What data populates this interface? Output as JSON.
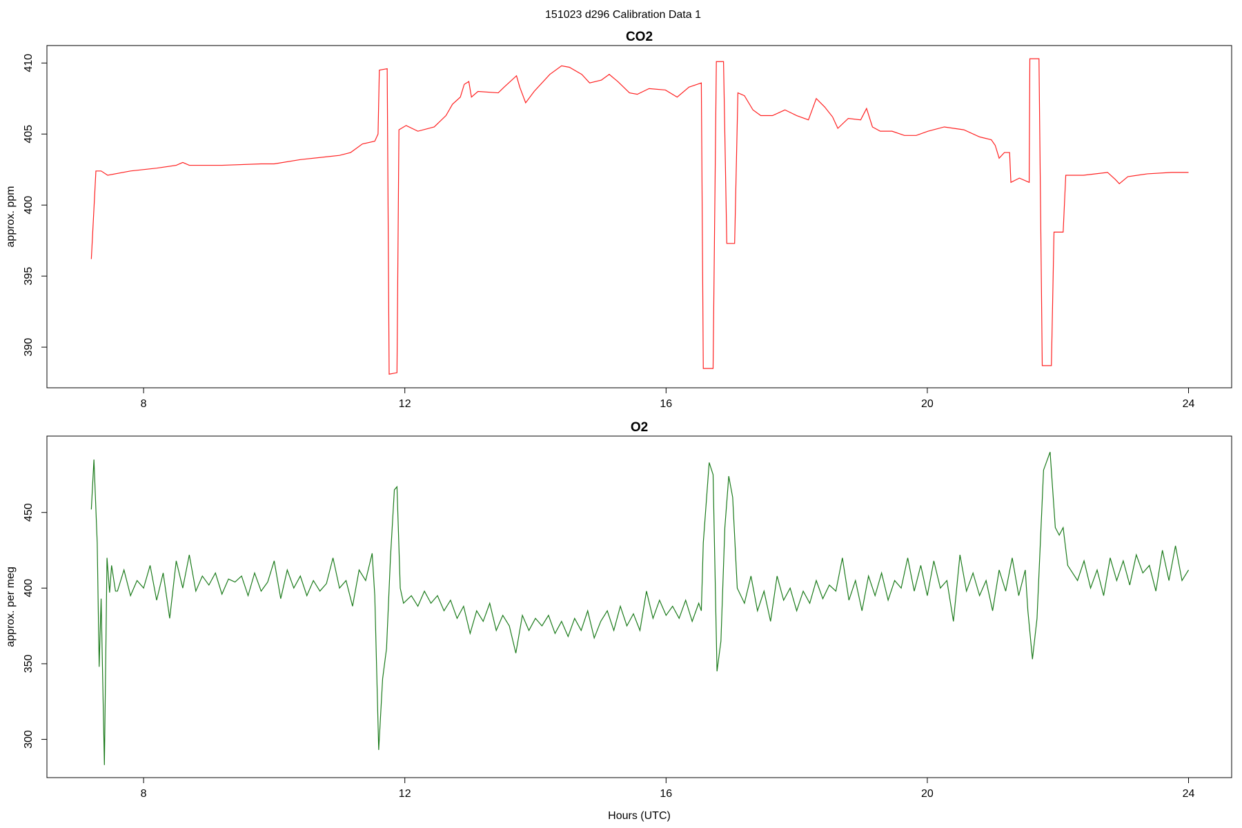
{
  "title": "151023   d296   Calibration Data 1",
  "chart_data": [
    {
      "type": "line",
      "title": "CO2",
      "ylabel": "approx. ppm",
      "color": "#ff2020",
      "xlim": [
        6.52,
        24.66
      ],
      "xticks": [
        8,
        12,
        16,
        20,
        24
      ],
      "ylim": [
        387.14,
        411.23
      ],
      "yticks": [
        390,
        395,
        400,
        405,
        410
      ],
      "x": [
        7.2,
        7.27,
        7.35,
        7.45,
        7.8,
        8.2,
        8.5,
        8.6,
        8.7,
        9.2,
        9.8,
        10.0,
        10.4,
        10.8,
        11.0,
        11.17,
        11.35,
        11.54,
        11.59,
        11.61,
        11.73,
        11.76,
        11.88,
        11.91,
        12.02,
        12.2,
        12.45,
        12.63,
        12.73,
        12.85,
        12.91,
        12.98,
        13.02,
        13.12,
        13.43,
        13.52,
        13.71,
        13.76,
        13.85,
        13.98,
        14.22,
        14.4,
        14.52,
        14.71,
        14.83,
        15.01,
        15.13,
        15.26,
        15.44,
        15.56,
        15.74,
        15.99,
        16.17,
        16.35,
        16.54,
        16.57,
        16.72,
        16.77,
        16.88,
        16.93,
        17.05,
        17.1,
        17.2,
        17.33,
        17.45,
        17.63,
        17.82,
        18.0,
        18.18,
        18.3,
        18.43,
        18.55,
        18.63,
        18.79,
        18.98,
        19.07,
        19.16,
        19.28,
        19.46,
        19.65,
        19.83,
        20.01,
        20.26,
        20.56,
        20.8,
        20.98,
        21.04,
        21.1,
        21.18,
        21.26,
        21.28,
        21.41,
        21.56,
        21.57,
        21.71,
        21.76,
        21.9,
        21.94,
        22.08,
        22.12,
        22.39,
        22.76,
        22.88,
        22.94,
        23.07,
        23.37,
        23.74,
        24.0
      ],
      "values": [
        396.2,
        402.4,
        402.4,
        402.1,
        402.4,
        402.6,
        402.8,
        403.0,
        402.8,
        402.8,
        402.9,
        402.9,
        403.2,
        403.4,
        403.5,
        403.7,
        404.3,
        404.5,
        405.0,
        409.5,
        409.6,
        388.1,
        388.2,
        405.3,
        405.6,
        405.2,
        405.5,
        406.3,
        407.1,
        407.6,
        408.5,
        408.7,
        407.6,
        408.0,
        407.9,
        408.3,
        409.1,
        408.3,
        407.2,
        408.0,
        409.2,
        409.8,
        409.7,
        409.2,
        408.6,
        408.8,
        409.2,
        408.7,
        407.9,
        407.8,
        408.2,
        408.1,
        407.6,
        408.3,
        408.6,
        388.5,
        388.5,
        410.1,
        410.1,
        397.3,
        397.3,
        407.9,
        407.7,
        406.7,
        406.3,
        406.3,
        406.7,
        406.3,
        406.0,
        407.5,
        406.9,
        406.2,
        405.4,
        406.1,
        406.0,
        406.8,
        405.5,
        405.2,
        405.2,
        404.9,
        404.9,
        405.2,
        405.5,
        405.3,
        404.8,
        404.6,
        404.2,
        403.3,
        403.7,
        403.7,
        401.6,
        401.9,
        401.6,
        410.3,
        410.3,
        388.7,
        388.7,
        398.1,
        398.1,
        402.1,
        402.1,
        402.3,
        401.8,
        401.5,
        402.0,
        402.2,
        402.3,
        402.3
      ]
    },
    {
      "type": "line",
      "title": "O2",
      "ylabel": "approx. per meg",
      "xlabel": "Hours (UTC)",
      "color": "#1a7a1a",
      "xlim": [
        6.52,
        24.66
      ],
      "xticks": [
        8,
        12,
        16,
        20,
        24
      ],
      "ylim": [
        274.7,
        500.5
      ],
      "yticks": [
        300,
        350,
        400,
        450
      ],
      "x": [
        7.2,
        7.24,
        7.29,
        7.32,
        7.35,
        7.4,
        7.44,
        7.48,
        7.51,
        7.57,
        7.6,
        7.7,
        7.8,
        7.9,
        8.0,
        8.1,
        8.2,
        8.3,
        8.4,
        8.5,
        8.6,
        8.7,
        8.8,
        8.9,
        9.0,
        9.1,
        9.2,
        9.3,
        9.4,
        9.5,
        9.6,
        9.7,
        9.8,
        9.9,
        10.0,
        10.1,
        10.2,
        10.3,
        10.4,
        10.5,
        10.6,
        10.7,
        10.8,
        10.9,
        11.0,
        11.1,
        11.2,
        11.3,
        11.4,
        11.5,
        11.54,
        11.6,
        11.66,
        11.72,
        11.78,
        11.84,
        11.88,
        11.93,
        11.98,
        12.1,
        12.2,
        12.3,
        12.4,
        12.5,
        12.6,
        12.7,
        12.8,
        12.9,
        13.0,
        13.1,
        13.2,
        13.3,
        13.4,
        13.5,
        13.6,
        13.7,
        13.8,
        13.9,
        14.0,
        14.1,
        14.2,
        14.3,
        14.4,
        14.5,
        14.6,
        14.7,
        14.8,
        14.9,
        15.0,
        15.1,
        15.2,
        15.3,
        15.4,
        15.5,
        15.6,
        15.7,
        15.8,
        15.9,
        16.0,
        16.1,
        16.2,
        16.3,
        16.4,
        16.5,
        16.54,
        16.57,
        16.66,
        16.72,
        16.78,
        16.84,
        16.9,
        16.96,
        17.02,
        17.09,
        17.2,
        17.3,
        17.4,
        17.5,
        17.6,
        17.7,
        17.8,
        17.9,
        18.0,
        18.1,
        18.2,
        18.3,
        18.4,
        18.5,
        18.6,
        18.7,
        18.8,
        18.9,
        19.0,
        19.1,
        19.2,
        19.3,
        19.4,
        19.5,
        19.6,
        19.7,
        19.8,
        19.9,
        20.0,
        20.1,
        20.2,
        20.3,
        20.4,
        20.5,
        20.6,
        20.7,
        20.8,
        20.9,
        21.0,
        21.1,
        21.2,
        21.3,
        21.4,
        21.5,
        21.54,
        21.61,
        21.68,
        21.78,
        21.88,
        21.96,
        22.02,
        22.08,
        22.15,
        22.3,
        22.4,
        22.5,
        22.6,
        22.7,
        22.8,
        22.9,
        23.0,
        23.1,
        23.2,
        23.3,
        23.4,
        23.5,
        23.6,
        23.7,
        23.8,
        23.9,
        24.0
      ],
      "values": [
        452,
        485,
        430,
        348,
        393,
        283,
        420,
        397,
        415,
        398,
        398,
        412,
        395,
        405,
        400,
        415,
        392,
        410,
        380,
        418,
        400,
        422,
        398,
        408,
        402,
        410,
        396,
        406,
        404,
        408,
        395,
        410,
        398,
        404,
        418,
        393,
        412,
        400,
        408,
        395,
        405,
        398,
        403,
        420,
        400,
        405,
        388,
        412,
        405,
        423,
        395,
        293,
        340,
        360,
        420,
        465,
        467,
        400,
        390,
        395,
        388,
        398,
        390,
        395,
        385,
        392,
        380,
        388,
        370,
        385,
        378,
        390,
        372,
        382,
        375,
        357,
        382,
        372,
        380,
        375,
        382,
        370,
        378,
        368,
        380,
        372,
        385,
        367,
        378,
        385,
        372,
        388,
        375,
        383,
        372,
        398,
        380,
        392,
        382,
        388,
        380,
        392,
        378,
        390,
        385,
        430,
        483,
        475,
        345,
        365,
        440,
        474,
        460,
        400,
        390,
        408,
        385,
        398,
        378,
        408,
        392,
        400,
        385,
        398,
        390,
        405,
        393,
        402,
        398,
        420,
        392,
        405,
        385,
        408,
        395,
        410,
        392,
        405,
        400,
        420,
        398,
        415,
        395,
        418,
        400,
        405,
        378,
        422,
        398,
        410,
        395,
        405,
        385,
        412,
        398,
        420,
        395,
        412,
        385,
        353,
        380,
        478,
        490,
        440,
        435,
        440,
        415,
        405,
        418,
        400,
        412,
        395,
        420,
        405,
        418,
        402,
        422,
        410,
        415,
        398,
        425,
        405,
        428,
        405,
        412
      ]
    }
  ]
}
